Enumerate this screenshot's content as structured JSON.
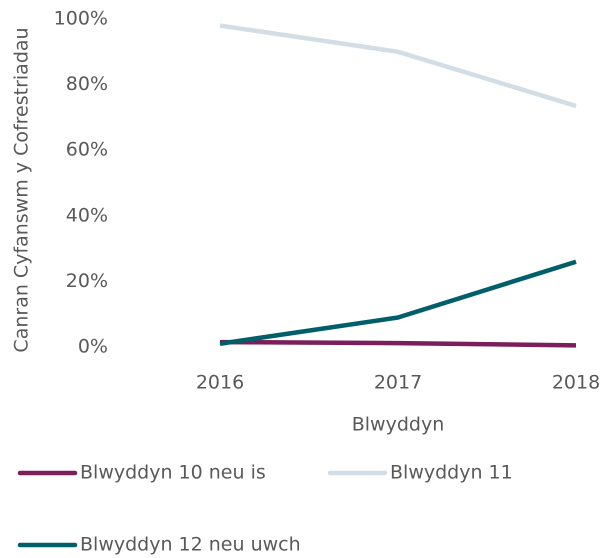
{
  "chart_data": {
    "type": "line",
    "y_label": "Canran Cyfanswm y Cofrestriadau",
    "x_label": "Blwyddyn",
    "categories": [
      "2016",
      "2017",
      "2018"
    ],
    "series": [
      {
        "name": "Blwyddyn 10 neu is",
        "color": "#7b1e5a",
        "values": [
          1.5,
          1.2,
          0.5
        ]
      },
      {
        "name": "Blwyddyn 11",
        "color": "#d3dde6",
        "values": [
          98,
          90,
          73.5
        ]
      },
      {
        "name": "Blwyddyn 12 neu uwch",
        "color": "#005f6b",
        "values": [
          1,
          9,
          26
        ]
      }
    ],
    "ylim": [
      0,
      100
    ],
    "yticks": [
      {
        "value": 0,
        "label": "0%"
      },
      {
        "value": 20,
        "label": "20%"
      },
      {
        "value": 40,
        "label": "40%"
      },
      {
        "value": 60,
        "label": "60%"
      },
      {
        "value": 80,
        "label": "80%"
      },
      {
        "value": 100,
        "label": "100%"
      }
    ],
    "grid": false
  }
}
